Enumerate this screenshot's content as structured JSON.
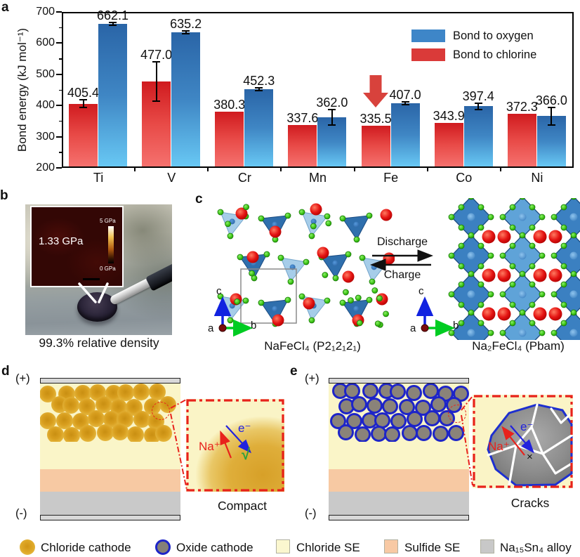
{
  "panel_a": {
    "label": "a"
  },
  "chart_data": {
    "type": "bar",
    "title": "",
    "xlabel": "",
    "ylabel": "Bond energy (kJ mol⁻¹)",
    "categories": [
      "Ti",
      "V",
      "Cr",
      "Mn",
      "Fe",
      "Co",
      "Ni"
    ],
    "series": [
      {
        "name": "Bond to chlorine",
        "color_top": "#d01b1f",
        "color_bottom": "#f5716e",
        "values": [
          405.4,
          477.0,
          380.3,
          337.6,
          335.5,
          343.9,
          372.3
        ],
        "errors": [
          12,
          63,
          0,
          0,
          0,
          0,
          0
        ]
      },
      {
        "name": "Bond to oxygen",
        "color_top": "#2a65a7",
        "color_bottom": "#68c8f4",
        "values": [
          662.1,
          635.2,
          452.3,
          362.0,
          407.0,
          397.4,
          366.0
        ],
        "errors": [
          5,
          5,
          5,
          25,
          4,
          10,
          28
        ]
      }
    ],
    "legend": [
      {
        "label": "Bond to oxygen",
        "color": "#3e86c8"
      },
      {
        "label": "Bond to chlorine",
        "color": "#da3a39"
      }
    ],
    "legend_position": "top-right",
    "ylim": [
      200,
      700
    ],
    "yticks": [
      200,
      300,
      400,
      500,
      600,
      700
    ],
    "grid": false,
    "value_labels_decimals": 1,
    "annotation": {
      "type": "down-arrow",
      "category": "Fe",
      "series": "Bond to chlorine",
      "color": "#d8423c"
    }
  },
  "panel_b": {
    "label": "b",
    "inset_value": "1.33 GPa",
    "scale_top": "5 GPa",
    "scale_bottom": "0 GPa",
    "caption": "99.3% relative density"
  },
  "panel_c": {
    "label": "c",
    "discharge": "Discharge",
    "charge": "Charge",
    "left_caption": "NaFeCl₄ (P2₁2₁2₁)",
    "right_caption": "Na₂FeCl₄ (Pbam)",
    "axis_a": "a",
    "axis_b": "b",
    "axis_c": "c"
  },
  "panel_d": {
    "label": "d",
    "plus": "(+)",
    "minus": "(-)",
    "na": "Na⁺",
    "electron": "e⁻",
    "check": "√",
    "caption": "Compact"
  },
  "panel_e": {
    "label": "e",
    "plus": "(+)",
    "minus": "(-)",
    "na": "Na⁺",
    "electron": "e⁻",
    "cross": "×",
    "caption": "Cracks"
  },
  "figure_legend": {
    "items": [
      {
        "label": "Chloride cathode",
        "swatch": "chloride-circle"
      },
      {
        "label": "Oxide cathode",
        "swatch": "oxide-circle"
      },
      {
        "label": "Chloride SE",
        "swatch": "square",
        "color": "#fbf7cf"
      },
      {
        "label": "Sulfide SE",
        "swatch": "square",
        "color": "#f8c9a4"
      },
      {
        "label": "Na₁₅Sn₄ alloy",
        "swatch": "square",
        "color": "#c8c8c8"
      }
    ]
  }
}
